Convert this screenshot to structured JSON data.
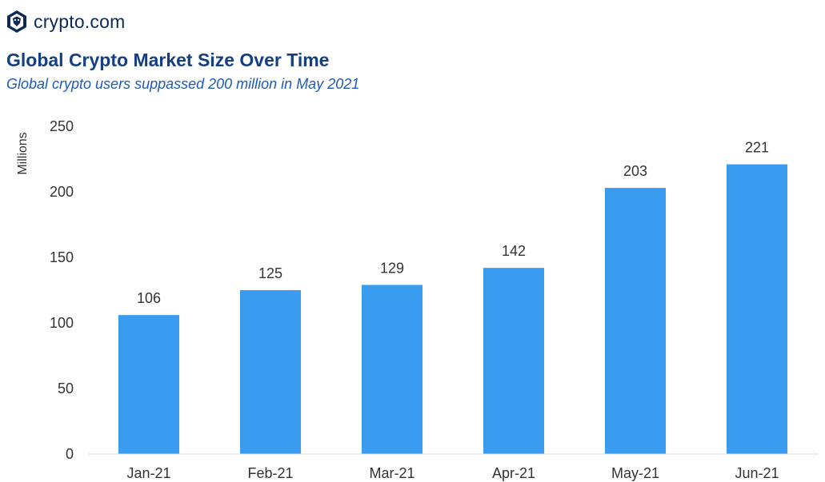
{
  "brand": {
    "name": "crypto.com",
    "logo_icon": "crypto-com-lion-shield-icon",
    "color": "#0b2a57"
  },
  "colors": {
    "bar": "#3a9cf0",
    "title": "#163f82",
    "subtitle": "#1f5ab6",
    "text": "#333333"
  },
  "chart_data": {
    "type": "bar",
    "title": "Global Crypto Market Size Over Time",
    "subtitle": "Global crypto users suppassed 200 million in May 2021",
    "ylabel": "Millions",
    "xlabel": "",
    "categories": [
      "Jan-21",
      "Feb-21",
      "Mar-21",
      "Apr-21",
      "May-21",
      "Jun-21"
    ],
    "values": [
      106,
      125,
      129,
      142,
      203,
      221
    ],
    "ylim": [
      0,
      250
    ],
    "yticks": [
      0,
      50,
      100,
      150,
      200,
      250
    ],
    "data_labels": true,
    "grid": false,
    "legend": "none"
  }
}
